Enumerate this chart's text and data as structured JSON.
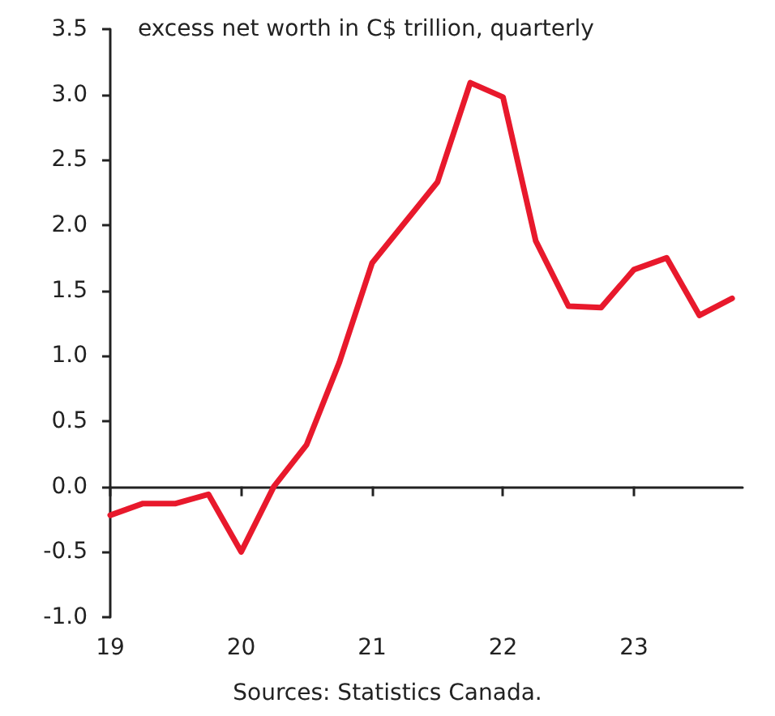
{
  "chart_data": {
    "type": "line",
    "title": "excess net worth in C$ trillion, quarterly",
    "x": [
      2019,
      2019.25,
      2019.5,
      2019.75,
      2020,
      2020.25,
      2020.5,
      2020.75,
      2021,
      2021.25,
      2021.5,
      2021.75,
      2022,
      2022.25,
      2022.5,
      2022.75,
      2023,
      2023.25,
      2023.5,
      2023.75
    ],
    "series": [
      {
        "color": "#e8192c",
        "values": [
          -0.22,
          -0.13,
          -0.13,
          -0.06,
          -0.5,
          0.0,
          0.32,
          0.95,
          1.71,
          2.02,
          2.33,
          3.09,
          2.98,
          1.88,
          1.38,
          1.37,
          1.66,
          1.75,
          1.31,
          1.44
        ]
      }
    ],
    "xlim": [
      2019,
      2023.83
    ],
    "xticks": [
      {
        "value": 2019,
        "label": "19"
      },
      {
        "value": 2020,
        "label": "20"
      },
      {
        "value": 2021,
        "label": "21"
      },
      {
        "value": 2022,
        "label": "22"
      },
      {
        "value": 2023,
        "label": "23"
      }
    ],
    "ylim": [
      -1.0,
      3.5
    ],
    "yticks": [
      {
        "value": -1,
        "label": "-1.0"
      },
      {
        "value": -0.5,
        "label": "-0.5"
      },
      {
        "value": 0,
        "label": "0.0"
      },
      {
        "value": 0.5,
        "label": "0.5"
      },
      {
        "value": 1,
        "label": "1.0"
      },
      {
        "value": 1.5,
        "label": "1.5"
      },
      {
        "value": 2,
        "label": "2.0"
      },
      {
        "value": 2.5,
        "label": "2.5"
      },
      {
        "value": 3,
        "label": "3.0"
      },
      {
        "value": 3.5,
        "label": "3.5"
      }
    ],
    "annotations": [
      "Sources: Statistics Canada."
    ],
    "marker": "none",
    "line_style": "solid"
  }
}
